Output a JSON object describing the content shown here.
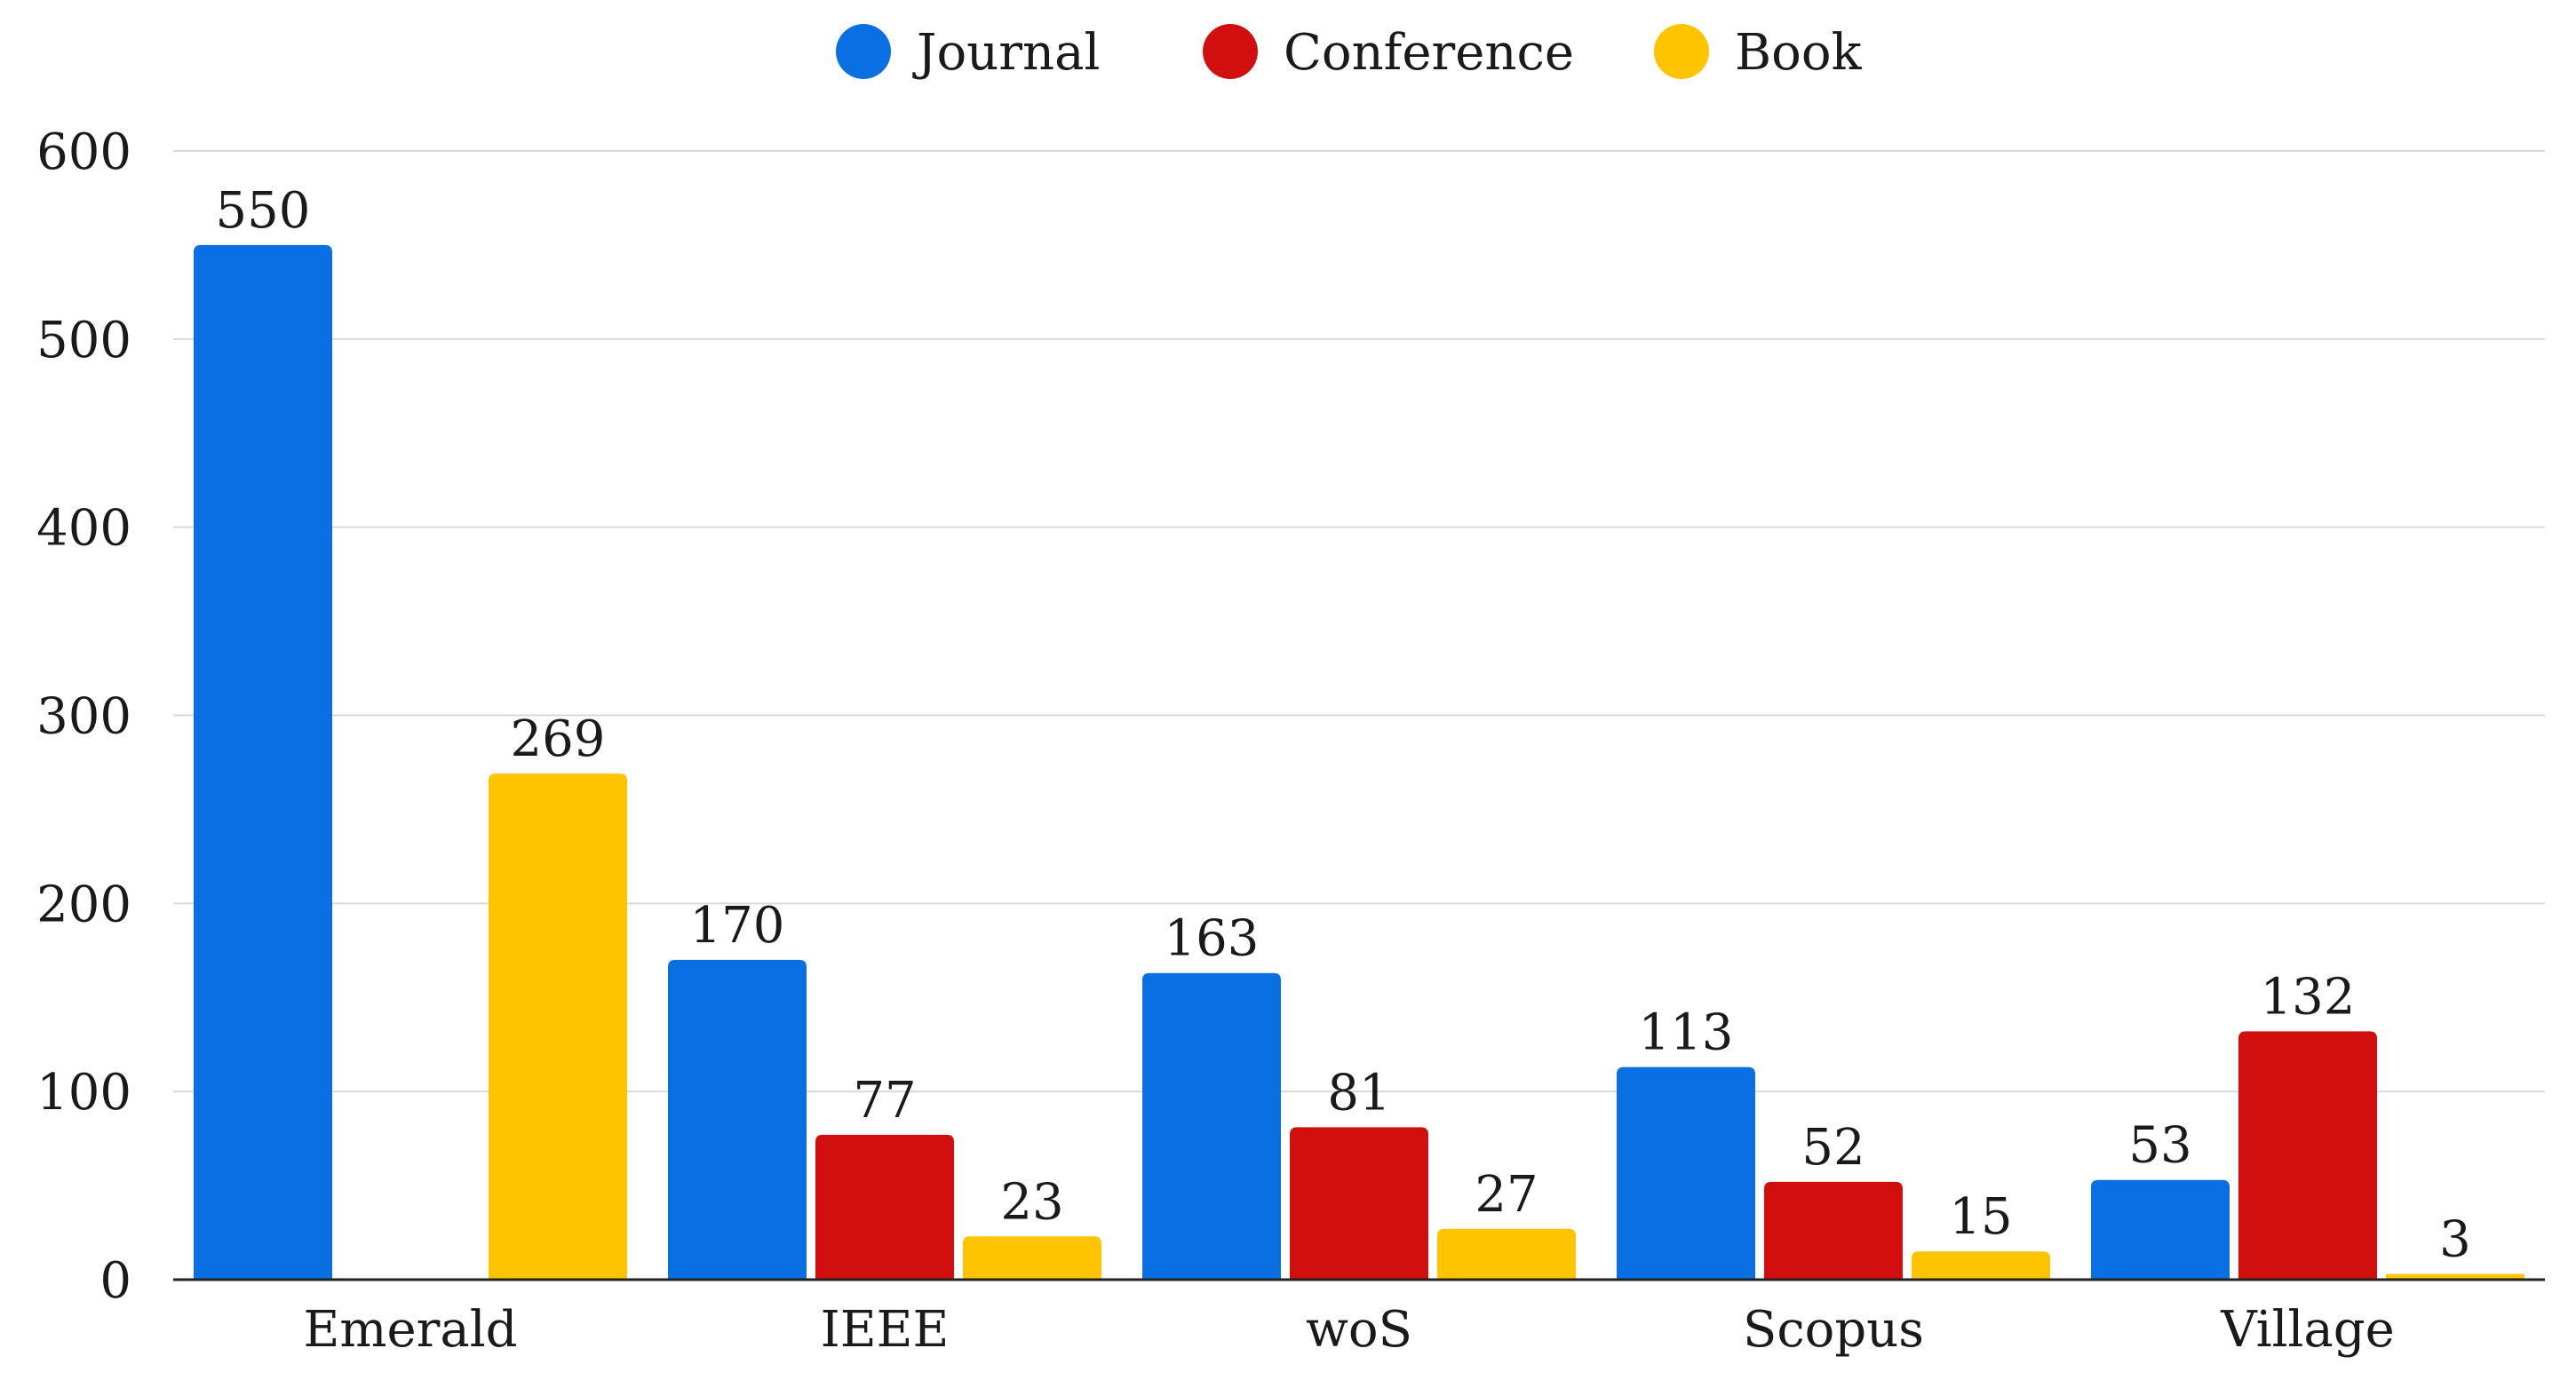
{
  "chart_data": {
    "type": "bar",
    "title": "",
    "xlabel": "",
    "ylabel": "",
    "categories": [
      "Emerald",
      "IEEE",
      "woS",
      "Scopus",
      "Village"
    ],
    "series": [
      {
        "name": "Journal",
        "color": "#0a6fe3",
        "values": [
          550,
          170,
          163,
          113,
          53
        ]
      },
      {
        "name": "Conference",
        "color": "#d10f0f",
        "values": [
          null,
          77,
          81,
          52,
          132
        ]
      },
      {
        "name": "Book",
        "color": "#ffc400",
        "values": [
          269,
          23,
          27,
          15,
          3
        ]
      }
    ],
    "ylim": [
      0,
      600
    ],
    "yticks": [
      0,
      100,
      200,
      300,
      400,
      500,
      600
    ],
    "grid": true,
    "legend": "top-center",
    "data_labels": true
  }
}
